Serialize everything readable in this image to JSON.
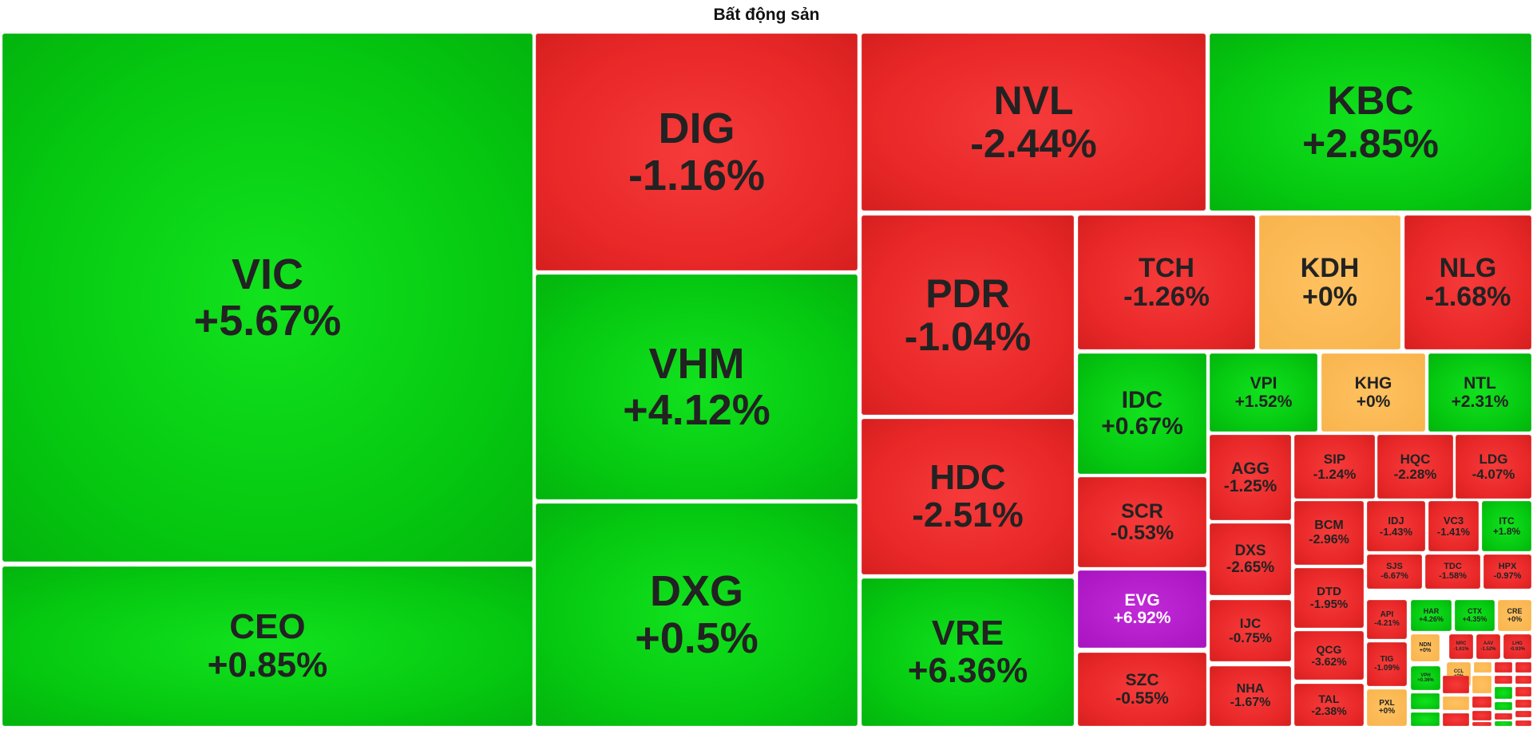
{
  "title": "Bất động sản",
  "colors": {
    "up": "#05c810",
    "down": "#e92828",
    "reference": "#f8b44d",
    "ceiling": "#a814c0"
  },
  "chart_data": {
    "type": "treemap",
    "title": "Bất động sản",
    "items": [
      {
        "ticker": "VIC",
        "change": "+5.67%",
        "value": 5.67,
        "color": "up"
      },
      {
        "ticker": "CEO",
        "change": "+0.85%",
        "value": 0.85,
        "color": "up"
      },
      {
        "ticker": "DIG",
        "change": "-1.16%",
        "value": -1.16,
        "color": "down"
      },
      {
        "ticker": "VHM",
        "change": "+4.12%",
        "value": 4.12,
        "color": "up"
      },
      {
        "ticker": "DXG",
        "change": "+0.5%",
        "value": 0.5,
        "color": "up"
      },
      {
        "ticker": "NVL",
        "change": "-2.44%",
        "value": -2.44,
        "color": "down"
      },
      {
        "ticker": "KBC",
        "change": "+2.85%",
        "value": 2.85,
        "color": "up"
      },
      {
        "ticker": "PDR",
        "change": "-1.04%",
        "value": -1.04,
        "color": "down"
      },
      {
        "ticker": "HDC",
        "change": "-2.51%",
        "value": -2.51,
        "color": "down"
      },
      {
        "ticker": "VRE",
        "change": "+6.36%",
        "value": 6.36,
        "color": "up"
      },
      {
        "ticker": "TCH",
        "change": "-1.26%",
        "value": -1.26,
        "color": "down"
      },
      {
        "ticker": "KDH",
        "change": "+0%",
        "value": 0,
        "color": "ref"
      },
      {
        "ticker": "NLG",
        "change": "-1.68%",
        "value": -1.68,
        "color": "down"
      },
      {
        "ticker": "IDC",
        "change": "+0.67%",
        "value": 0.67,
        "color": "up"
      },
      {
        "ticker": "SCR",
        "change": "-0.53%",
        "value": -0.53,
        "color": "down"
      },
      {
        "ticker": "EVG",
        "change": "+6.92%",
        "value": 6.92,
        "color": "ceil"
      },
      {
        "ticker": "SZC",
        "change": "-0.55%",
        "value": -0.55,
        "color": "down"
      },
      {
        "ticker": "VPI",
        "change": "+1.52%",
        "value": 1.52,
        "color": "up"
      },
      {
        "ticker": "KHG",
        "change": "+0%",
        "value": 0,
        "color": "ref"
      },
      {
        "ticker": "NTL",
        "change": "+2.31%",
        "value": 2.31,
        "color": "up"
      },
      {
        "ticker": "AGG",
        "change": "-1.25%",
        "value": -1.25,
        "color": "down"
      },
      {
        "ticker": "SIP",
        "change": "-1.24%",
        "value": -1.24,
        "color": "down"
      },
      {
        "ticker": "HQC",
        "change": "-2.28%",
        "value": -2.28,
        "color": "down"
      },
      {
        "ticker": "LDG",
        "change": "-4.07%",
        "value": -4.07,
        "color": "down"
      },
      {
        "ticker": "DXS",
        "change": "-2.65%",
        "value": -2.65,
        "color": "down"
      },
      {
        "ticker": "IJC",
        "change": "-0.75%",
        "value": -0.75,
        "color": "down"
      },
      {
        "ticker": "NHA",
        "change": "-1.67%",
        "value": -1.67,
        "color": "down"
      },
      {
        "ticker": "BCM",
        "change": "-2.96%",
        "value": -2.96,
        "color": "down"
      },
      {
        "ticker": "DTD",
        "change": "-1.95%",
        "value": -1.95,
        "color": "down"
      },
      {
        "ticker": "QCG",
        "change": "-3.62%",
        "value": -3.62,
        "color": "down"
      },
      {
        "ticker": "TAL",
        "change": "-2.38%",
        "value": -2.38,
        "color": "down"
      },
      {
        "ticker": "IDJ",
        "change": "-1.43%",
        "value": -1.43,
        "color": "down"
      },
      {
        "ticker": "VC3",
        "change": "-1.41%",
        "value": -1.41,
        "color": "down"
      },
      {
        "ticker": "ITC",
        "change": "+1.8%",
        "value": 1.8,
        "color": "up"
      },
      {
        "ticker": "SJS",
        "change": "-6.67%",
        "value": -6.67,
        "color": "down"
      },
      {
        "ticker": "TDC",
        "change": "-1.58%",
        "value": -1.58,
        "color": "down"
      },
      {
        "ticker": "HPX",
        "change": "-0.97%",
        "value": -0.97,
        "color": "down"
      },
      {
        "ticker": "API",
        "change": "-4.21%",
        "value": -4.21,
        "color": "down"
      },
      {
        "ticker": "TIG",
        "change": "-1.09%",
        "value": -1.09,
        "color": "down"
      },
      {
        "ticker": "PXL",
        "change": "+0%",
        "value": 0,
        "color": "ref"
      },
      {
        "ticker": "HAR",
        "change": "+4.26%",
        "value": 4.26,
        "color": "up"
      },
      {
        "ticker": "CTX",
        "change": "+4.35%",
        "value": 4.35,
        "color": "up"
      },
      {
        "ticker": "CRE",
        "change": "+0%",
        "value": 0,
        "color": "ref"
      },
      {
        "ticker": "NDN",
        "change": "+0%",
        "value": 0,
        "color": "ref"
      },
      {
        "ticker": "NRC",
        "change": "-1.61%",
        "value": -1.61,
        "color": "down"
      },
      {
        "ticker": "AAV",
        "change": "-1.52%",
        "value": -1.52,
        "color": "down"
      },
      {
        "ticker": "LHG",
        "change": "-0.93%",
        "value": -0.93,
        "color": "down"
      },
      {
        "ticker": "VPH",
        "change": "+0.36%",
        "value": 0.36,
        "color": "up"
      },
      {
        "ticker": "CCL",
        "change": "+0%",
        "value": 0,
        "color": "ref"
      }
    ]
  }
}
